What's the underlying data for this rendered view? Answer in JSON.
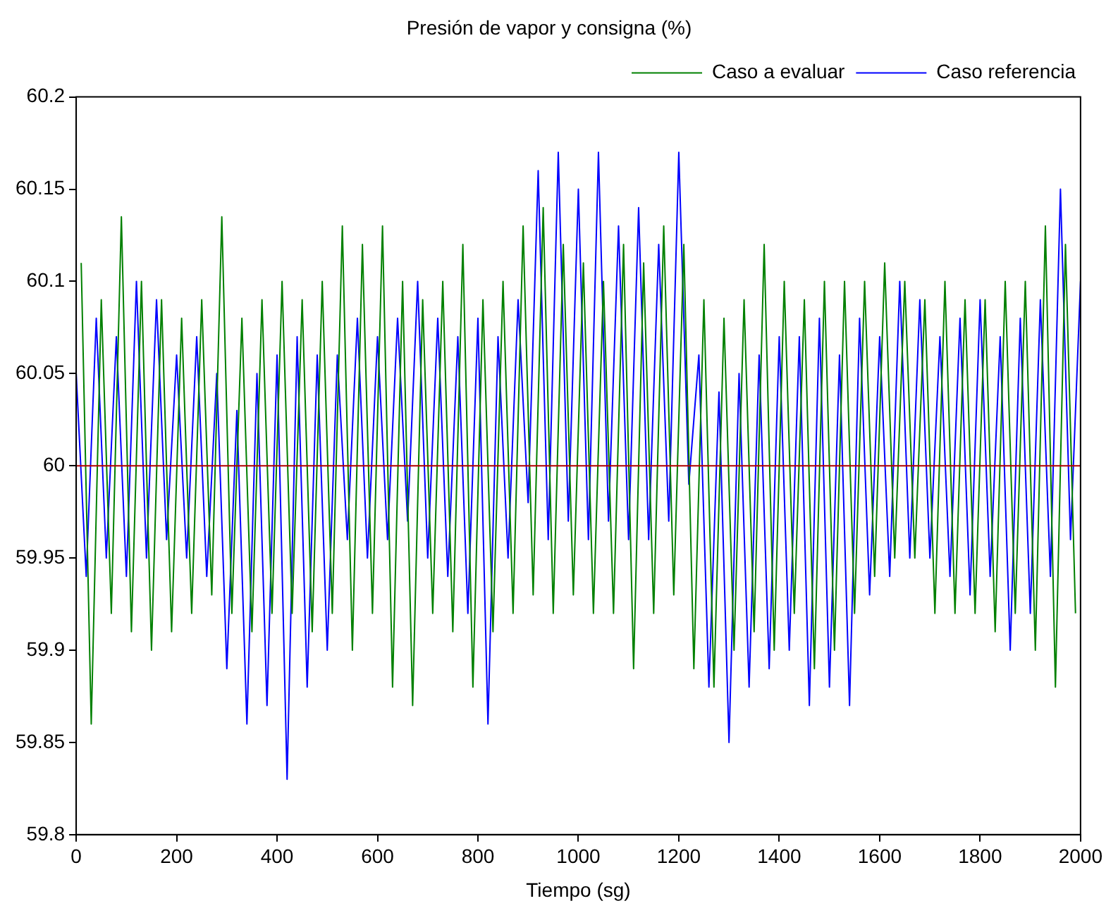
{
  "chart_data": {
    "type": "line",
    "title": "Presión de vapor y consigna (%)",
    "xlabel": "Tiempo (sg)",
    "xlim": [
      0,
      2000
    ],
    "xticks": [
      0,
      200,
      400,
      600,
      800,
      1000,
      1200,
      1400,
      1600,
      1800,
      2000
    ],
    "ylim": [
      59.8,
      60.2
    ],
    "yticks": [
      59.8,
      59.85,
      59.9,
      59.95,
      60,
      60.05,
      60.1,
      60.15,
      60.2
    ],
    "grid": false,
    "legend": "top right",
    "marker": "none",
    "line_style": "solid",
    "series": [
      {
        "name": "Caso referencia",
        "type": "line",
        "color": "#0000ff",
        "x": [
          0,
          20,
          40,
          60,
          80,
          100,
          120,
          140,
          160,
          180,
          200,
          220,
          240,
          260,
          280,
          300,
          320,
          340,
          360,
          380,
          400,
          420,
          440,
          460,
          480,
          500,
          520,
          540,
          560,
          580,
          600,
          620,
          640,
          660,
          680,
          700,
          720,
          740,
          760,
          780,
          800,
          820,
          840,
          860,
          880,
          900,
          920,
          940,
          960,
          980,
          1000,
          1020,
          1040,
          1060,
          1080,
          1100,
          1120,
          1140,
          1160,
          1180,
          1200,
          1220,
          1240,
          1260,
          1280,
          1300,
          1320,
          1340,
          1360,
          1380,
          1400,
          1420,
          1440,
          1460,
          1480,
          1500,
          1520,
          1540,
          1560,
          1580,
          1600,
          1620,
          1640,
          1660,
          1680,
          1700,
          1720,
          1740,
          1760,
          1780,
          1800,
          1820,
          1840,
          1860,
          1880,
          1900,
          1920,
          1940,
          1960,
          1980,
          2000
        ],
        "values": [
          60.05,
          59.94,
          60.08,
          59.95,
          60.07,
          59.94,
          60.1,
          59.95,
          60.09,
          59.96,
          60.06,
          59.95,
          60.07,
          59.94,
          60.05,
          59.89,
          60.03,
          59.86,
          60.05,
          59.87,
          60.06,
          59.83,
          60.07,
          59.88,
          60.06,
          59.9,
          60.06,
          59.96,
          60.08,
          59.95,
          60.07,
          59.96,
          60.08,
          59.97,
          60.1,
          59.95,
          60.08,
          59.94,
          60.07,
          59.92,
          60.08,
          59.86,
          60.07,
          59.95,
          60.09,
          59.98,
          60.16,
          59.96,
          60.17,
          59.97,
          60.15,
          59.96,
          60.17,
          59.97,
          60.13,
          59.96,
          60.14,
          59.96,
          60.12,
          59.97,
          60.17,
          59.99,
          60.06,
          59.88,
          60.04,
          59.85,
          60.05,
          59.88,
          60.06,
          59.89,
          60.07,
          59.9,
          60.07,
          59.87,
          60.08,
          59.88,
          60.06,
          59.87,
          60.08,
          59.93,
          60.07,
          59.94,
          60.1,
          59.95,
          60.09,
          59.95,
          60.07,
          59.94,
          60.08,
          59.93,
          60.09,
          59.94,
          60.07,
          59.9,
          60.08,
          59.92,
          60.09,
          59.94,
          60.15,
          59.96,
          60.1
        ]
      },
      {
        "name": "Caso a evaluar",
        "type": "line",
        "color": "#008000",
        "x": [
          10,
          30,
          50,
          70,
          90,
          110,
          130,
          150,
          170,
          190,
          210,
          230,
          250,
          270,
          290,
          310,
          330,
          350,
          370,
          390,
          410,
          430,
          450,
          470,
          490,
          510,
          530,
          550,
          570,
          590,
          610,
          630,
          650,
          670,
          690,
          710,
          730,
          750,
          770,
          790,
          810,
          830,
          850,
          870,
          890,
          910,
          930,
          950,
          970,
          990,
          1010,
          1030,
          1050,
          1070,
          1090,
          1110,
          1130,
          1150,
          1170,
          1190,
          1210,
          1230,
          1250,
          1270,
          1290,
          1310,
          1330,
          1350,
          1370,
          1390,
          1410,
          1430,
          1450,
          1470,
          1490,
          1510,
          1530,
          1550,
          1570,
          1590,
          1610,
          1630,
          1650,
          1670,
          1690,
          1710,
          1730,
          1750,
          1770,
          1790,
          1810,
          1830,
          1850,
          1870,
          1890,
          1910,
          1930,
          1950,
          1970,
          1990
        ],
        "values": [
          60.11,
          59.86,
          60.09,
          59.92,
          60.135,
          59.91,
          60.1,
          59.9,
          60.09,
          59.91,
          60.08,
          59.92,
          60.09,
          59.93,
          60.135,
          59.92,
          60.08,
          59.91,
          60.09,
          59.92,
          60.1,
          59.92,
          60.09,
          59.91,
          60.1,
          59.92,
          60.13,
          59.9,
          60.12,
          59.92,
          60.13,
          59.88,
          60.1,
          59.87,
          60.09,
          59.92,
          60.1,
          59.91,
          60.12,
          59.88,
          60.09,
          59.91,
          60.1,
          59.92,
          60.13,
          59.93,
          60.14,
          59.92,
          60.12,
          59.93,
          60.11,
          59.92,
          60.1,
          59.92,
          60.12,
          59.89,
          60.11,
          59.92,
          60.13,
          59.93,
          60.12,
          59.89,
          60.09,
          59.88,
          60.08,
          59.9,
          60.09,
          59.91,
          60.12,
          59.9,
          60.1,
          59.92,
          60.09,
          59.89,
          60.1,
          59.9,
          60.1,
          59.92,
          60.1,
          59.94,
          60.11,
          59.95,
          60.1,
          59.95,
          60.09,
          59.92,
          60.1,
          59.92,
          60.09,
          59.92,
          60.09,
          59.91,
          60.1,
          59.92,
          60.1,
          59.9,
          60.13,
          59.88,
          60.12,
          59.92
        ]
      },
      {
        "type": "line",
        "color": "#b00000",
        "x": [
          0,
          2000
        ],
        "values": [
          60,
          60
        ]
      }
    ]
  }
}
